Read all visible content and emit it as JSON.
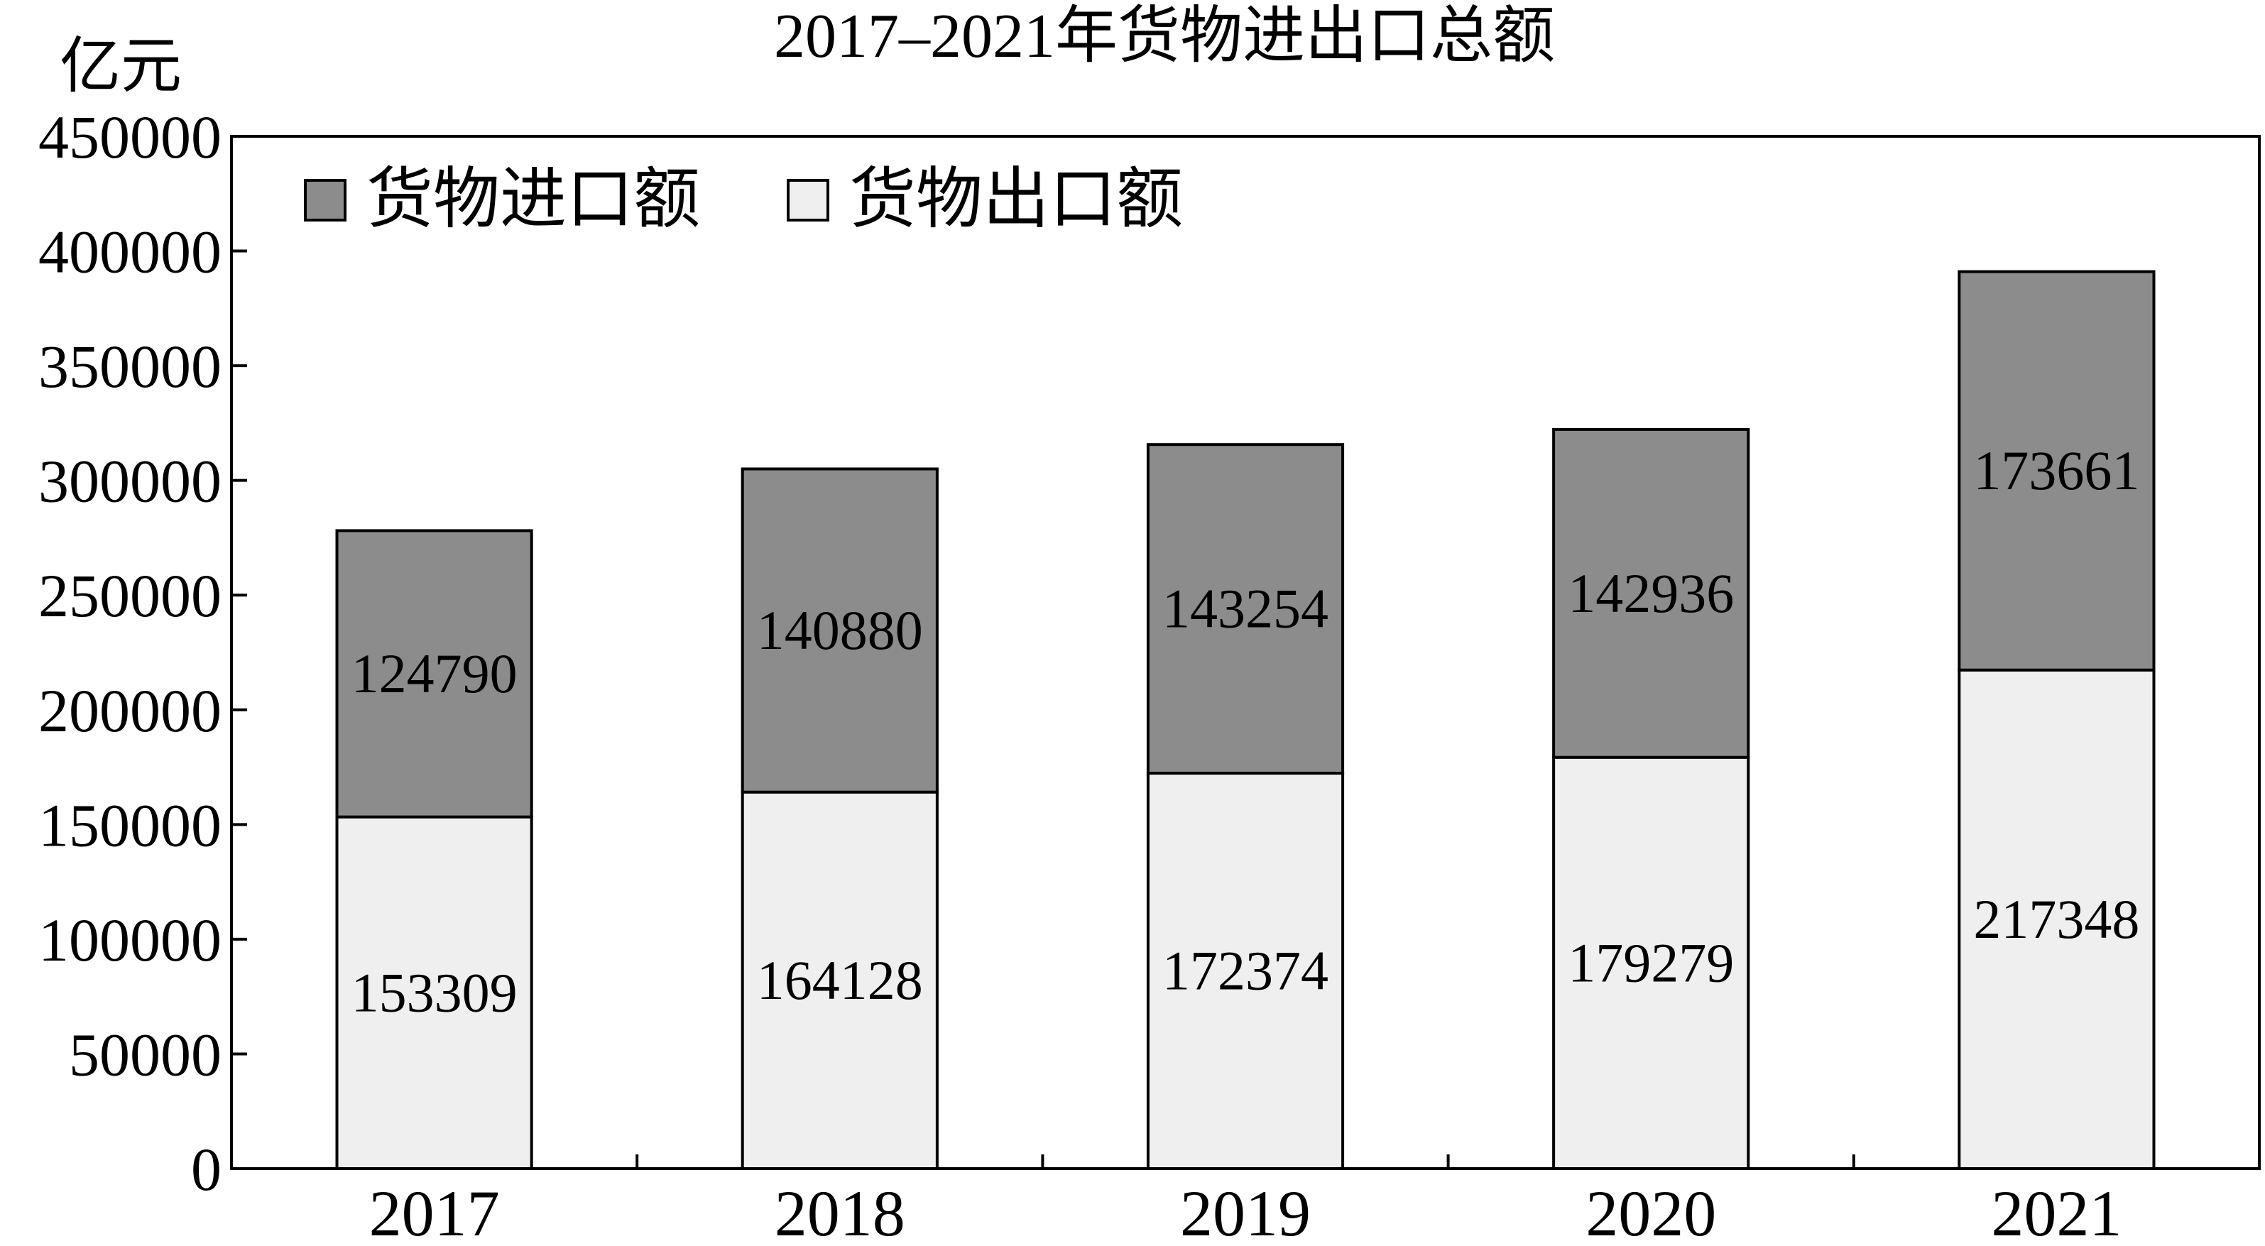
{
  "chart_data": {
    "type": "bar",
    "stacked": true,
    "title": "2017–2021年货物进出口总额",
    "unit_label": "亿元",
    "xlabel": "",
    "ylabel": "",
    "categories": [
      "2017",
      "2018",
      "2019",
      "2020",
      "2021"
    ],
    "series": [
      {
        "name": "货物出口额",
        "values": [
          153309,
          164128,
          172374,
          179279,
          217348
        ],
        "color": "#efefef"
      },
      {
        "name": "货物进口额",
        "values": [
          124790,
          140880,
          143254,
          142936,
          173661
        ],
        "color": "#8c8c8c"
      }
    ],
    "ylim": [
      0,
      450000
    ],
    "yticks": [
      0,
      50000,
      100000,
      150000,
      200000,
      250000,
      300000,
      350000,
      400000,
      450000
    ],
    "legend_position": "top-left",
    "grid": false
  }
}
